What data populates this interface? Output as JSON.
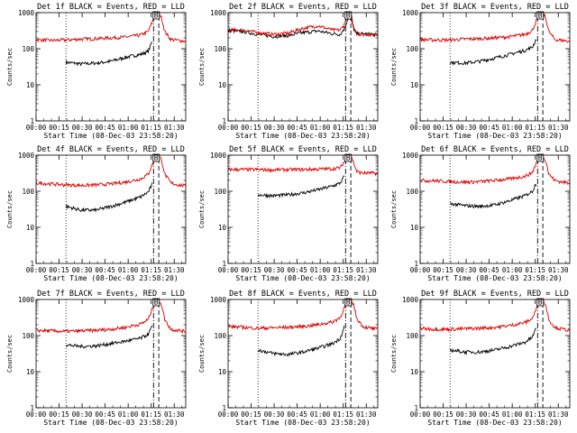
{
  "figure": {
    "background": "#ffffff"
  },
  "colors": {
    "events": "#000000",
    "lld": "#dd0000",
    "axis": "#000000"
  },
  "chart_data": [
    {
      "type": "line",
      "title": "Det 1f BLACK = Events, RED = LLD",
      "xlabel": "Start Time (08-Dec-03 23:58:20)",
      "ylabel": "Counts/sec",
      "xlim": [
        0,
        100
      ],
      "ylim": [
        1,
        1000
      ],
      "yscale": "log",
      "xtick_labels": [
        "00:00",
        "00:15",
        "00:30",
        "00:45",
        "01:00",
        "01:15",
        "01:30"
      ],
      "ytick_labels": [
        "1",
        "10",
        "100",
        "1000"
      ],
      "vlines": {
        "dotted": 20,
        "dashdot": 78.5,
        "dashed": 82
      },
      "peak_marker": "B",
      "series": [
        {
          "name": "Events",
          "color": "#000000",
          "x": [
            20,
            30,
            40,
            50,
            60,
            70,
            75,
            78
          ],
          "y": [
            42,
            38,
            40,
            45,
            58,
            70,
            85,
            180
          ]
        },
        {
          "name": "LLD",
          "color": "#dd0000",
          "x": [
            0,
            10,
            20,
            30,
            40,
            50,
            60,
            70,
            75,
            78,
            80,
            82,
            84,
            86,
            90,
            95,
            100
          ],
          "y": [
            180,
            170,
            175,
            185,
            190,
            200,
            210,
            240,
            300,
            600,
            1000,
            1000,
            700,
            300,
            180,
            170,
            160
          ]
        }
      ]
    },
    {
      "type": "line",
      "title": "Det 2f BLACK = Events, RED = LLD",
      "xlabel": "Start Time (08-Dec-03 23:58:20)",
      "ylabel": "Counts/sec",
      "xlim": [
        0,
        100
      ],
      "ylim": [
        1,
        1000
      ],
      "yscale": "log",
      "xtick_labels": [
        "00:00",
        "00:15",
        "00:30",
        "00:45",
        "01:00",
        "01:15",
        "01:30"
      ],
      "ytick_labels": [
        "1",
        "10",
        "100",
        "1000"
      ],
      "vlines": {
        "dotted": 20,
        "dashdot": 78.5,
        "dashed": 82
      },
      "peak_marker": "B",
      "series": [
        {
          "name": "Events",
          "color": "#000000",
          "x": [
            0,
            10,
            20,
            30,
            40,
            50,
            60,
            70,
            75,
            78,
            80,
            82,
            84,
            86,
            90,
            95,
            100
          ],
          "y": [
            320,
            300,
            250,
            220,
            230,
            280,
            310,
            260,
            250,
            380,
            700,
            700,
            350,
            260,
            260,
            250,
            240
          ]
        },
        {
          "name": "LLD",
          "color": "#dd0000",
          "x": [
            0,
            10,
            20,
            30,
            40,
            50,
            60,
            70,
            75,
            78,
            80,
            82,
            84,
            86,
            90,
            95,
            100
          ],
          "y": [
            330,
            330,
            280,
            250,
            270,
            370,
            430,
            330,
            330,
            500,
            1000,
            1000,
            380,
            260,
            250,
            250,
            240
          ]
        }
      ]
    },
    {
      "type": "line",
      "title": "Det 3f BLACK = Events, RED = LLD",
      "xlabel": "Start Time (08-Dec-03 23:58:20)",
      "ylabel": "Counts/sec",
      "xlim": [
        0,
        100
      ],
      "ylim": [
        1,
        1000
      ],
      "yscale": "log",
      "xtick_labels": [
        "00:00",
        "00:15",
        "00:30",
        "00:45",
        "01:00",
        "01:15",
        "01:30"
      ],
      "ytick_labels": [
        "1",
        "10",
        "100",
        "1000"
      ],
      "vlines": {
        "dotted": 20,
        "dashdot": 78.5,
        "dashed": 82
      },
      "peak_marker": "B",
      "series": [
        {
          "name": "Events",
          "color": "#000000",
          "x": [
            20,
            30,
            40,
            50,
            60,
            70,
            75,
            78
          ],
          "y": [
            42,
            40,
            45,
            55,
            70,
            90,
            110,
            200
          ]
        },
        {
          "name": "LLD",
          "color": "#dd0000",
          "x": [
            0,
            10,
            20,
            30,
            40,
            50,
            60,
            70,
            75,
            78,
            80,
            82,
            84,
            86,
            90,
            95,
            100
          ],
          "y": [
            180,
            175,
            175,
            185,
            190,
            200,
            215,
            250,
            320,
            650,
            1000,
            1000,
            700,
            300,
            180,
            170,
            160
          ]
        }
      ]
    },
    {
      "type": "line",
      "title": "Det 4f BLACK = Events, RED = LLD",
      "xlabel": "Start Time (08-Dec-03 23:58:20)",
      "ylabel": "Counts/sec",
      "xlim": [
        0,
        100
      ],
      "ylim": [
        1,
        1000
      ],
      "yscale": "log",
      "xtick_labels": [
        "00:00",
        "00:15",
        "00:30",
        "00:45",
        "01:00",
        "01:15",
        "01:30"
      ],
      "ytick_labels": [
        "1",
        "10",
        "100",
        "1000"
      ],
      "vlines": {
        "dotted": 20,
        "dashdot": 78.5,
        "dashed": 82
      },
      "peak_marker": "B",
      "series": [
        {
          "name": "Events",
          "color": "#000000",
          "x": [
            20,
            30,
            40,
            50,
            60,
            70,
            75,
            78
          ],
          "y": [
            38,
            30,
            30,
            38,
            50,
            70,
            95,
            170
          ]
        },
        {
          "name": "LLD",
          "color": "#dd0000",
          "x": [
            0,
            10,
            20,
            30,
            40,
            50,
            60,
            70,
            75,
            78,
            80,
            82,
            84,
            86,
            90,
            95,
            100
          ],
          "y": [
            170,
            160,
            150,
            145,
            150,
            160,
            180,
            220,
            300,
            600,
            1000,
            1000,
            700,
            300,
            170,
            150,
            140
          ]
        }
      ]
    },
    {
      "type": "line",
      "title": "Det 5f BLACK = Events, RED = LLD",
      "xlabel": "Start Time (08-Dec-03 23:58:20)",
      "ylabel": "Counts/sec",
      "xlim": [
        0,
        100
      ],
      "ylim": [
        1,
        1000
      ],
      "yscale": "log",
      "xtick_labels": [
        "00:00",
        "00:15",
        "00:30",
        "00:45",
        "01:00",
        "01:15",
        "01:30"
      ],
      "ytick_labels": [
        "1",
        "10",
        "100",
        "1000"
      ],
      "vlines": {
        "dotted": 20,
        "dashdot": 78.5,
        "dashed": 82
      },
      "peak_marker": "B",
      "series": [
        {
          "name": "Events",
          "color": "#000000",
          "x": [
            20,
            30,
            40,
            50,
            60,
            70,
            75,
            78
          ],
          "y": [
            80,
            75,
            80,
            90,
            110,
            140,
            170,
            280
          ]
        },
        {
          "name": "LLD",
          "color": "#dd0000",
          "x": [
            0,
            10,
            20,
            30,
            40,
            50,
            60,
            70,
            75,
            78,
            80,
            82,
            84,
            86,
            90,
            95,
            100
          ],
          "y": [
            400,
            400,
            400,
            390,
            400,
            400,
            410,
            420,
            450,
            700,
            1000,
            1000,
            600,
            350,
            320,
            320,
            310
          ]
        }
      ]
    },
    {
      "type": "line",
      "title": "Det 6f BLACK = Events, RED = LLD",
      "xlabel": "Start Time (08-Dec-03 23:58:20)",
      "ylabel": "Counts/sec",
      "xlim": [
        0,
        100
      ],
      "ylim": [
        1,
        1000
      ],
      "yscale": "log",
      "xtick_labels": [
        "00:00",
        "00:15",
        "00:30",
        "00:45",
        "01:00",
        "01:15",
        "01:30"
      ],
      "ytick_labels": [
        "1",
        "10",
        "100",
        "1000"
      ],
      "vlines": {
        "dotted": 20,
        "dashdot": 78.5,
        "dashed": 82
      },
      "peak_marker": "B",
      "series": [
        {
          "name": "Events",
          "color": "#000000",
          "x": [
            20,
            30,
            40,
            50,
            60,
            70,
            75,
            78
          ],
          "y": [
            45,
            40,
            38,
            42,
            55,
            75,
            100,
            190
          ]
        },
        {
          "name": "LLD",
          "color": "#dd0000",
          "x": [
            0,
            10,
            20,
            30,
            40,
            50,
            60,
            70,
            75,
            78,
            80,
            82,
            84,
            86,
            90,
            95,
            100
          ],
          "y": [
            200,
            195,
            185,
            180,
            185,
            200,
            220,
            260,
            330,
            650,
            1000,
            1000,
            700,
            300,
            200,
            180,
            170
          ]
        }
      ]
    },
    {
      "type": "line",
      "title": "Det 7f BLACK = Events, RED = LLD",
      "xlabel": "Start Time (08-Dec-03 23:58:20)",
      "ylabel": "Counts/sec",
      "xlim": [
        0,
        100
      ],
      "ylim": [
        1,
        1000
      ],
      "yscale": "log",
      "xtick_labels": [
        "00:00",
        "00:15",
        "00:30",
        "00:45",
        "01:00",
        "01:15",
        "01:30"
      ],
      "ytick_labels": [
        "1",
        "10",
        "100",
        "1000"
      ],
      "vlines": {
        "dotted": 20,
        "dashdot": 78.5,
        "dashed": 82
      },
      "peak_marker": "B",
      "series": [
        {
          "name": "Events",
          "color": "#000000",
          "x": [
            20,
            30,
            40,
            50,
            60,
            70,
            75,
            78
          ],
          "y": [
            55,
            50,
            52,
            60,
            70,
            85,
            110,
            200
          ]
        },
        {
          "name": "LLD",
          "color": "#dd0000",
          "x": [
            0,
            10,
            20,
            30,
            40,
            50,
            60,
            70,
            75,
            78,
            80,
            82,
            84,
            86,
            90,
            95,
            100
          ],
          "y": [
            140,
            135,
            130,
            135,
            140,
            150,
            170,
            210,
            280,
            600,
            1000,
            1000,
            700,
            280,
            150,
            140,
            130
          ]
        }
      ]
    },
    {
      "type": "line",
      "title": "Det 8f BLACK = Events, RED = LLD",
      "xlabel": "Start Time (08-Dec-03 23:58:20)",
      "ylabel": "Counts/sec",
      "xlim": [
        0,
        100
      ],
      "ylim": [
        1,
        1000
      ],
      "yscale": "log",
      "xtick_labels": [
        "00:00",
        "00:15",
        "00:30",
        "00:45",
        "01:00",
        "01:15",
        "01:30"
      ],
      "ytick_labels": [
        "1",
        "10",
        "100",
        "1000"
      ],
      "vlines": {
        "dotted": 20,
        "dashdot": 78.5,
        "dashed": 82
      },
      "peak_marker": "B",
      "series": [
        {
          "name": "Events",
          "color": "#000000",
          "x": [
            20,
            30,
            40,
            50,
            60,
            70,
            75,
            78
          ],
          "y": [
            40,
            32,
            30,
            35,
            45,
            60,
            85,
            200
          ]
        },
        {
          "name": "LLD",
          "color": "#dd0000",
          "x": [
            0,
            10,
            20,
            30,
            40,
            50,
            60,
            70,
            75,
            78,
            80,
            82,
            84,
            86,
            90,
            95,
            100
          ],
          "y": [
            180,
            170,
            160,
            165,
            170,
            180,
            200,
            240,
            320,
            650,
            1000,
            1000,
            700,
            300,
            180,
            160,
            150
          ]
        }
      ]
    },
    {
      "type": "line",
      "title": "Det 9f BLACK = Events, RED = LLD",
      "xlabel": "Start Time (08-Dec-03 23:58:20)",
      "ylabel": "Counts/sec",
      "xlim": [
        0,
        100
      ],
      "ylim": [
        1,
        1000
      ],
      "yscale": "log",
      "xtick_labels": [
        "00:00",
        "00:15",
        "00:30",
        "00:45",
        "01:00",
        "01:15",
        "01:30"
      ],
      "ytick_labels": [
        "1",
        "10",
        "100",
        "1000"
      ],
      "vlines": {
        "dotted": 20,
        "dashdot": 78.5,
        "dashed": 82
      },
      "peak_marker": "B",
      "series": [
        {
          "name": "Events",
          "color": "#000000",
          "x": [
            20,
            30,
            40,
            50,
            60,
            70,
            75,
            78
          ],
          "y": [
            40,
            35,
            35,
            40,
            50,
            65,
            90,
            180
          ]
        },
        {
          "name": "LLD",
          "color": "#dd0000",
          "x": [
            0,
            10,
            20,
            30,
            40,
            50,
            60,
            70,
            75,
            78,
            80,
            82,
            84,
            86,
            90,
            95,
            100
          ],
          "y": [
            160,
            150,
            150,
            155,
            160,
            170,
            190,
            230,
            300,
            600,
            1000,
            1000,
            680,
            280,
            170,
            150,
            140
          ]
        }
      ]
    }
  ]
}
